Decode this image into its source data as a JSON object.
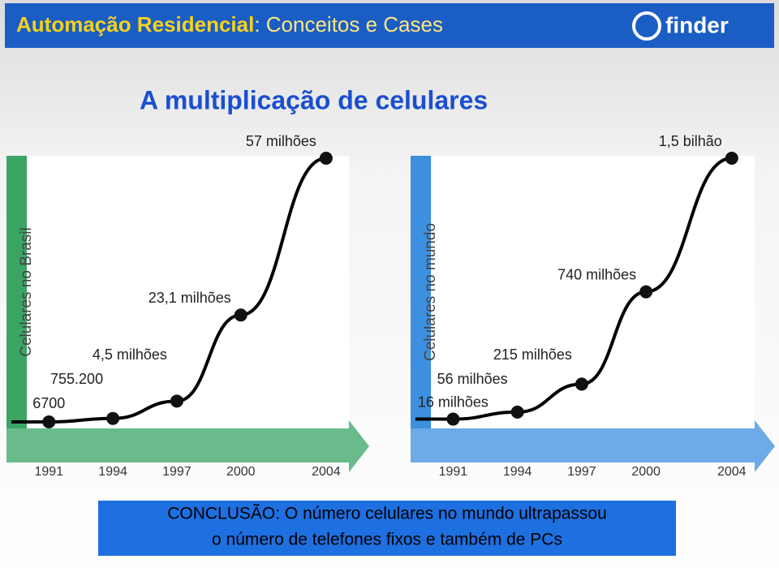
{
  "header": {
    "title": "Automação Residencial",
    "subtitle": ": Conceitos e Cases",
    "logo": "finder"
  },
  "slide_title": "A multiplicação de celulares",
  "chart_data": [
    {
      "type": "line",
      "y_label": "Celulares no Brasil",
      "color": "#000000",
      "band_color": "#3aa565",
      "x": [
        1991,
        1994,
        1997,
        2000,
        2004
      ],
      "values": [
        6700,
        755200,
        4500000,
        23100000,
        57000000
      ],
      "value_labels": [
        "6700",
        "755.200",
        "4,5 milhões",
        "23,1 milhões",
        "57 milhões"
      ],
      "xlim": [
        1990,
        2004.5
      ],
      "ylim": [
        0,
        57000000
      ],
      "xticks": [
        1991,
        1994,
        1997,
        2000,
        2004
      ]
    },
    {
      "type": "line",
      "y_label": "Celulares no mundo",
      "color": "#000000",
      "band_color": "#3d8fe0",
      "x": [
        1991,
        1994,
        1997,
        2000,
        2004
      ],
      "values": [
        16000000,
        56000000,
        215000000,
        740000000,
        1500000000
      ],
      "value_labels": [
        "16 milhões",
        "56 milhões",
        "215 milhões",
        "740 milhões",
        "1,5 bilhão"
      ],
      "xlim": [
        1990,
        2004.5
      ],
      "ylim": [
        0,
        1500000000
      ],
      "xticks": [
        1991,
        1994,
        1997,
        2000,
        2004
      ]
    }
  ],
  "conclusion": [
    "CONCLUSÃO: O número celulares no mundo ultrapassou",
    "o número de telefones fixos e também de PCs"
  ]
}
